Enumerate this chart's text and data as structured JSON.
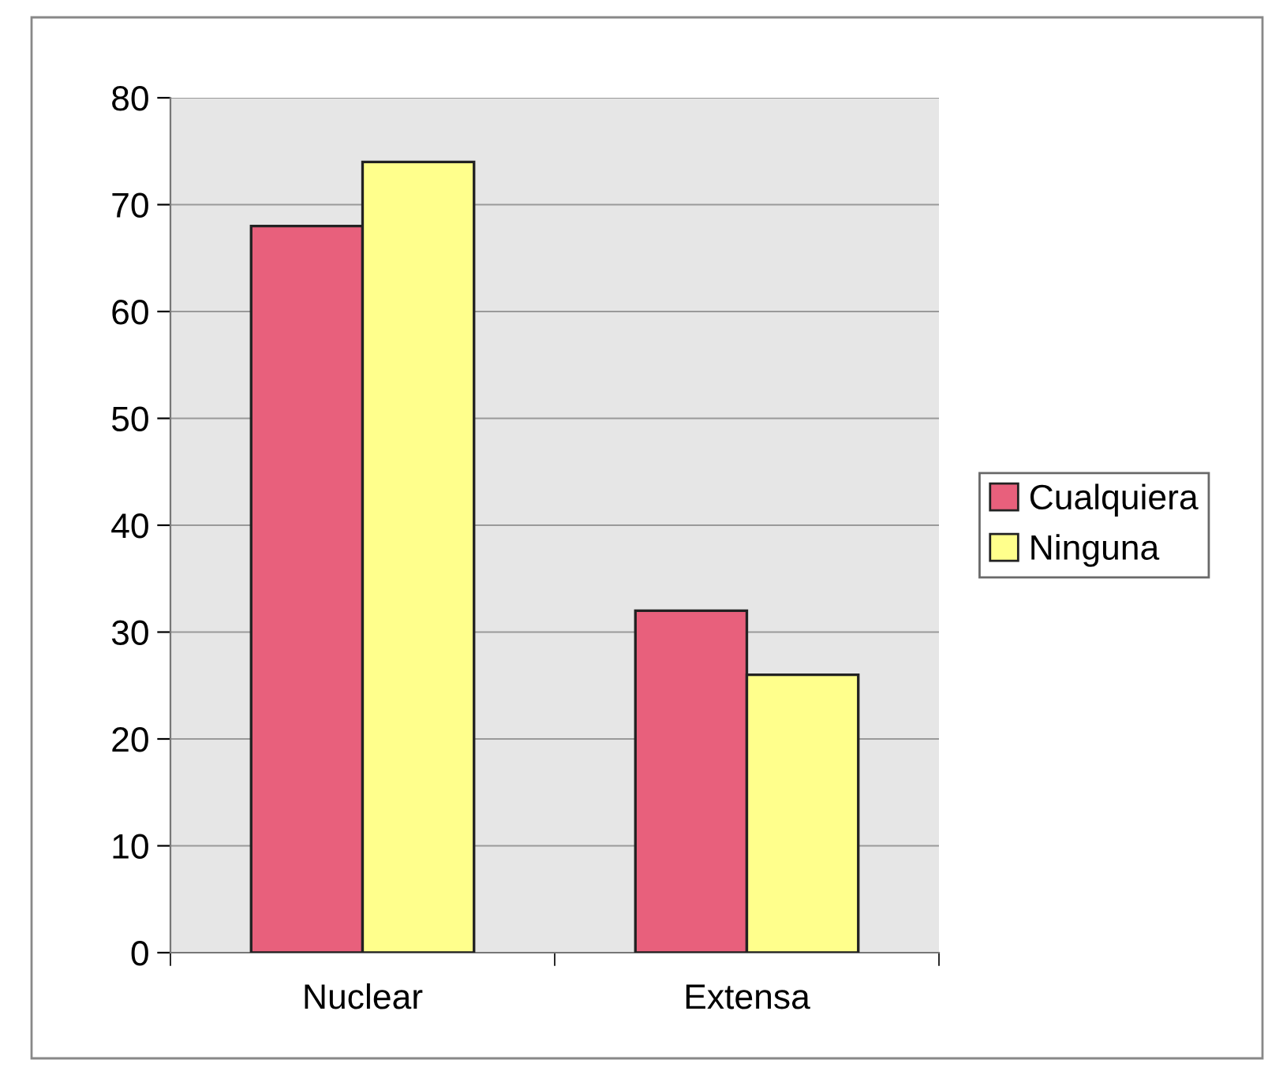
{
  "chart_data": {
    "type": "bar",
    "categories": [
      "Nuclear",
      "Extensa"
    ],
    "series": [
      {
        "name": "Cualquiera",
        "color": "#e8607c",
        "values": [
          68,
          32
        ]
      },
      {
        "name": "Ninguna",
        "color": "#ffff8c",
        "values": [
          74,
          26
        ]
      }
    ],
    "ylim": [
      0,
      80
    ],
    "yticks": [
      0,
      10,
      20,
      30,
      40,
      50,
      60,
      70,
      80
    ],
    "grid": "y",
    "legend": "right"
  }
}
